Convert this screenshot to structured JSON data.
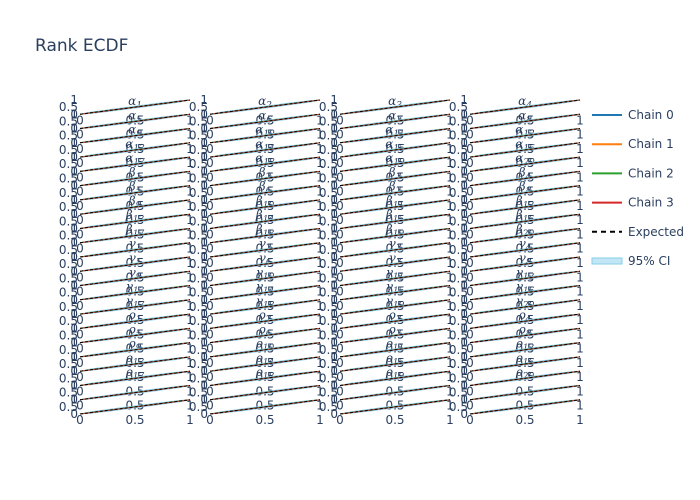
{
  "chart_data": {
    "type": "line",
    "title": "Rank ECDF",
    "grid": {
      "rows": 22,
      "cols": 4
    },
    "panel_titles": [
      [
        "α",
        "1"
      ],
      [
        "α",
        "2"
      ],
      [
        "α",
        "3"
      ],
      [
        "α",
        "4"
      ],
      [
        "α",
        "5"
      ],
      [
        "α",
        "6"
      ],
      [
        "α",
        "7"
      ],
      [
        "α",
        "8"
      ],
      [
        "α",
        "9"
      ],
      [
        "α",
        "10"
      ],
      [
        "α",
        "11"
      ],
      [
        "α",
        "12"
      ],
      [
        "α",
        "13"
      ],
      [
        "α",
        "14"
      ],
      [
        "α",
        "15"
      ],
      [
        "α",
        "16"
      ],
      [
        "α",
        "17"
      ],
      [
        "α",
        "18"
      ],
      [
        "α",
        "19"
      ],
      [
        "α",
        "20"
      ],
      [
        "β",
        "1"
      ],
      [
        "β",
        "2"
      ],
      [
        "β",
        "3"
      ],
      [
        "β",
        "4"
      ],
      [
        "β",
        "5"
      ],
      [
        "β",
        "6"
      ],
      [
        "β",
        "7"
      ],
      [
        "β",
        "8"
      ],
      [
        "β",
        "9"
      ],
      [
        "β",
        "10"
      ],
      [
        "β",
        "11"
      ],
      [
        "β",
        "12"
      ],
      [
        "β",
        "13"
      ],
      [
        "β",
        "14"
      ],
      [
        "β",
        "15"
      ],
      [
        "β",
        "16"
      ],
      [
        "β",
        "17"
      ],
      [
        "β",
        "18"
      ],
      [
        "β",
        "19"
      ],
      [
        "β",
        "20"
      ],
      [
        "γ",
        "1"
      ],
      [
        "γ",
        "2"
      ],
      [
        "γ",
        "3"
      ],
      [
        "γ",
        "4"
      ],
      [
        "γ",
        "5"
      ],
      [
        "γ",
        "6"
      ],
      [
        "γ",
        "7"
      ],
      [
        "γ",
        "8"
      ],
      [
        "γ",
        "9"
      ],
      [
        "γ",
        "10"
      ],
      [
        "γ",
        "11"
      ],
      [
        "γ",
        "12"
      ],
      [
        "γ",
        "13"
      ],
      [
        "γ",
        "14"
      ],
      [
        "γ",
        "15"
      ],
      [
        "γ",
        "16"
      ],
      [
        "γ",
        "17"
      ],
      [
        "γ",
        "18"
      ],
      [
        "γ",
        "19"
      ],
      [
        "γ",
        "20"
      ],
      [
        "ρ",
        "1"
      ],
      [
        "ρ",
        "2"
      ],
      [
        "ρ",
        "3"
      ],
      [
        "ρ",
        "4"
      ],
      [
        "ρ",
        "5"
      ],
      [
        "ρ",
        "6"
      ],
      [
        "ρ",
        "7"
      ],
      [
        "ρ",
        "8"
      ],
      [
        "ρ",
        "9"
      ],
      [
        "ρ",
        "10"
      ],
      [
        "ρ",
        "11"
      ],
      [
        "ρ",
        "12"
      ],
      [
        "ρ",
        "13"
      ],
      [
        "ρ",
        "14"
      ],
      [
        "ρ",
        "15"
      ],
      [
        "ρ",
        "16"
      ],
      [
        "ρ",
        "17"
      ],
      [
        "ρ",
        "18"
      ],
      [
        "ρ",
        "19"
      ],
      [
        "ρ",
        "20"
      ]
    ],
    "x_ticks": [
      0,
      0.5,
      1
    ],
    "x_tick_labels": [
      "0",
      "0.5",
      "1"
    ],
    "y_ticks": [
      0,
      0.5,
      1
    ],
    "y_tick_labels": [
      "0",
      "0.5",
      "1"
    ],
    "xlim": [
      0,
      1
    ],
    "ylim": [
      0,
      1
    ],
    "x": [
      0,
      0.1,
      0.2,
      0.3,
      0.4,
      0.5,
      0.6,
      0.7,
      0.8,
      0.9,
      1
    ],
    "series": [
      {
        "name": "Chain 0",
        "color": "#1f77b4",
        "values": [
          0,
          0.1,
          0.21,
          0.3,
          0.41,
          0.5,
          0.6,
          0.71,
          0.8,
          0.9,
          1
        ]
      },
      {
        "name": "Chain 1",
        "color": "#ff7f0e",
        "values": [
          0,
          0.09,
          0.2,
          0.31,
          0.4,
          0.5,
          0.61,
          0.7,
          0.79,
          0.9,
          1
        ]
      },
      {
        "name": "Chain 2",
        "color": "#2ca02c",
        "values": [
          0,
          0.11,
          0.2,
          0.29,
          0.4,
          0.51,
          0.6,
          0.7,
          0.81,
          0.91,
          1
        ]
      },
      {
        "name": "Chain 3",
        "color": "#d62728",
        "values": [
          0,
          0.1,
          0.19,
          0.3,
          0.39,
          0.49,
          0.59,
          0.69,
          0.8,
          0.9,
          1
        ]
      }
    ],
    "expected": {
      "name": "Expected",
      "color": "#000000",
      "dash": "dashed",
      "values": [
        0,
        0.1,
        0.2,
        0.3,
        0.4,
        0.5,
        0.6,
        0.7,
        0.8,
        0.9,
        1
      ]
    },
    "ci_band": {
      "name": "95% CI",
      "color": "#87ceeb",
      "lower": [
        0,
        0.06,
        0.15,
        0.24,
        0.34,
        0.44,
        0.54,
        0.64,
        0.75,
        0.85,
        1
      ],
      "upper": [
        0,
        0.15,
        0.25,
        0.36,
        0.46,
        0.56,
        0.66,
        0.76,
        0.85,
        0.94,
        1
      ]
    },
    "legend": {
      "placement": "right",
      "entries": [
        "Chain 0",
        "Chain 1",
        "Chain 2",
        "Chain 3",
        "Expected",
        "95% CI"
      ]
    }
  }
}
